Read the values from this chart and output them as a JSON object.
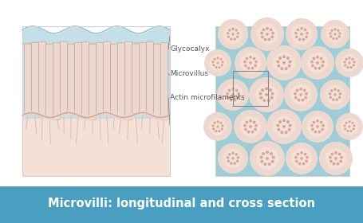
{
  "title": "Microvilli: longitudinal and cross section",
  "title_bg": "#4a9fc0",
  "title_text_color": "#ffffff",
  "bg_color": "#ffffff",
  "cell_body_color": "#f5e0d8",
  "glycocalyx_color": "#c5dfe8",
  "microvilli_between_color": "#c5dfe8",
  "microvillus_fill": "#edd8cf",
  "microvillus_stroke": "#c8a898",
  "right_panel_bg": "#9ecdd8",
  "circle_outer_color": "#edd8cf",
  "circle_inner_color": "#f5e0d8",
  "dot_color": "#d4a898",
  "annotation_color": "#555555",
  "line_color": "#888888",
  "labels": [
    "Glycocalyx",
    "Microvillus",
    "Actin microfilaments"
  ],
  "figure_width": 4.55,
  "figure_height": 2.8,
  "dpi": 100
}
